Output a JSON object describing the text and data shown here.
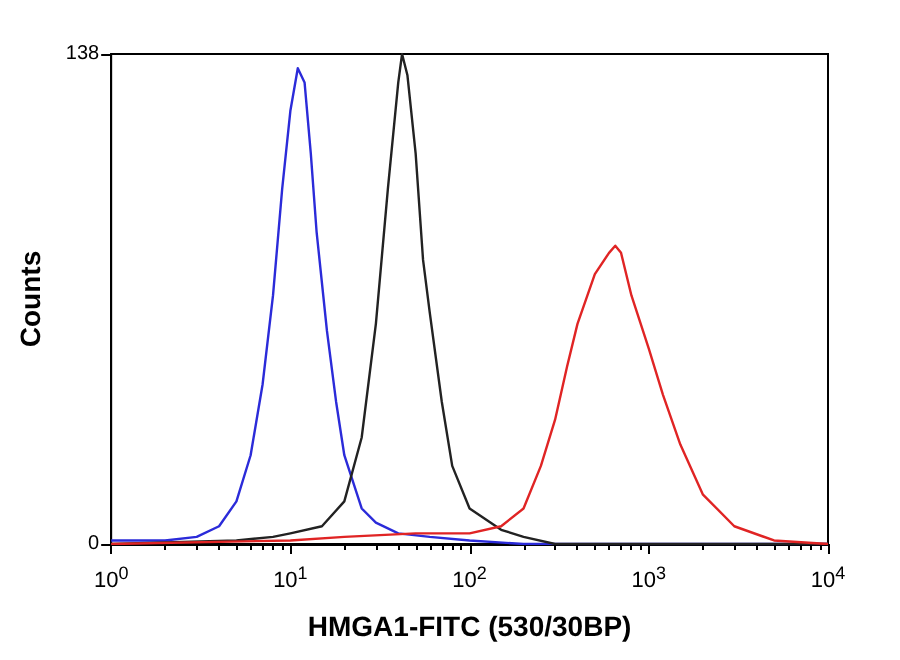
{
  "chart_data": {
    "type": "line",
    "xlabel": "HMGA1-FITC (530/30BP)",
    "ylabel": "Counts",
    "log": "x",
    "marker": "none",
    "grid": false,
    "xlim": [
      1,
      10000
    ],
    "xticks": [
      {
        "value": 1,
        "label": "10$^{0}$"
      },
      {
        "value": 10,
        "label": "10$^{1}$"
      },
      {
        "value": 100,
        "label": "10$^{2}$"
      },
      {
        "value": 1000,
        "label": "10$^{3}$"
      },
      {
        "value": 10000,
        "label": "10$^{4}$"
      }
    ],
    "ylim": [
      0,
      138
    ],
    "yticks": [
      0,
      138
    ],
    "series": [
      {
        "color": "#2b2bd9",
        "x": [
          1,
          2,
          3,
          4,
          5,
          6,
          7,
          8,
          9,
          10,
          11,
          12,
          13,
          14,
          16,
          18,
          20,
          25,
          30,
          40,
          60,
          100,
          200,
          10000
        ],
        "values": [
          1,
          1,
          2,
          5,
          12,
          25,
          45,
          70,
          100,
          122,
          134,
          130,
          110,
          88,
          60,
          40,
          25,
          10,
          6,
          3,
          2,
          1,
          0,
          0
        ]
      },
      {
        "color": "#222222",
        "x": [
          1,
          5,
          8,
          10,
          15,
          20,
          25,
          30,
          35,
          40,
          42,
          45,
          50,
          55,
          60,
          70,
          80,
          100,
          150,
          200,
          300,
          10000
        ],
        "values": [
          0,
          1,
          2,
          3,
          5,
          12,
          30,
          62,
          100,
          130,
          138,
          132,
          110,
          80,
          65,
          40,
          22,
          10,
          4,
          2,
          0,
          0
        ]
      },
      {
        "color": "#e02424",
        "x": [
          1,
          10,
          20,
          50,
          100,
          150,
          200,
          250,
          300,
          350,
          400,
          500,
          600,
          650,
          700,
          800,
          1000,
          1200,
          1500,
          2000,
          3000,
          5000,
          10000
        ],
        "values": [
          0,
          1,
          2,
          3,
          3,
          5,
          10,
          22,
          35,
          50,
          62,
          76,
          82,
          84,
          82,
          70,
          55,
          42,
          28,
          14,
          5,
          1,
          0
        ]
      }
    ]
  }
}
